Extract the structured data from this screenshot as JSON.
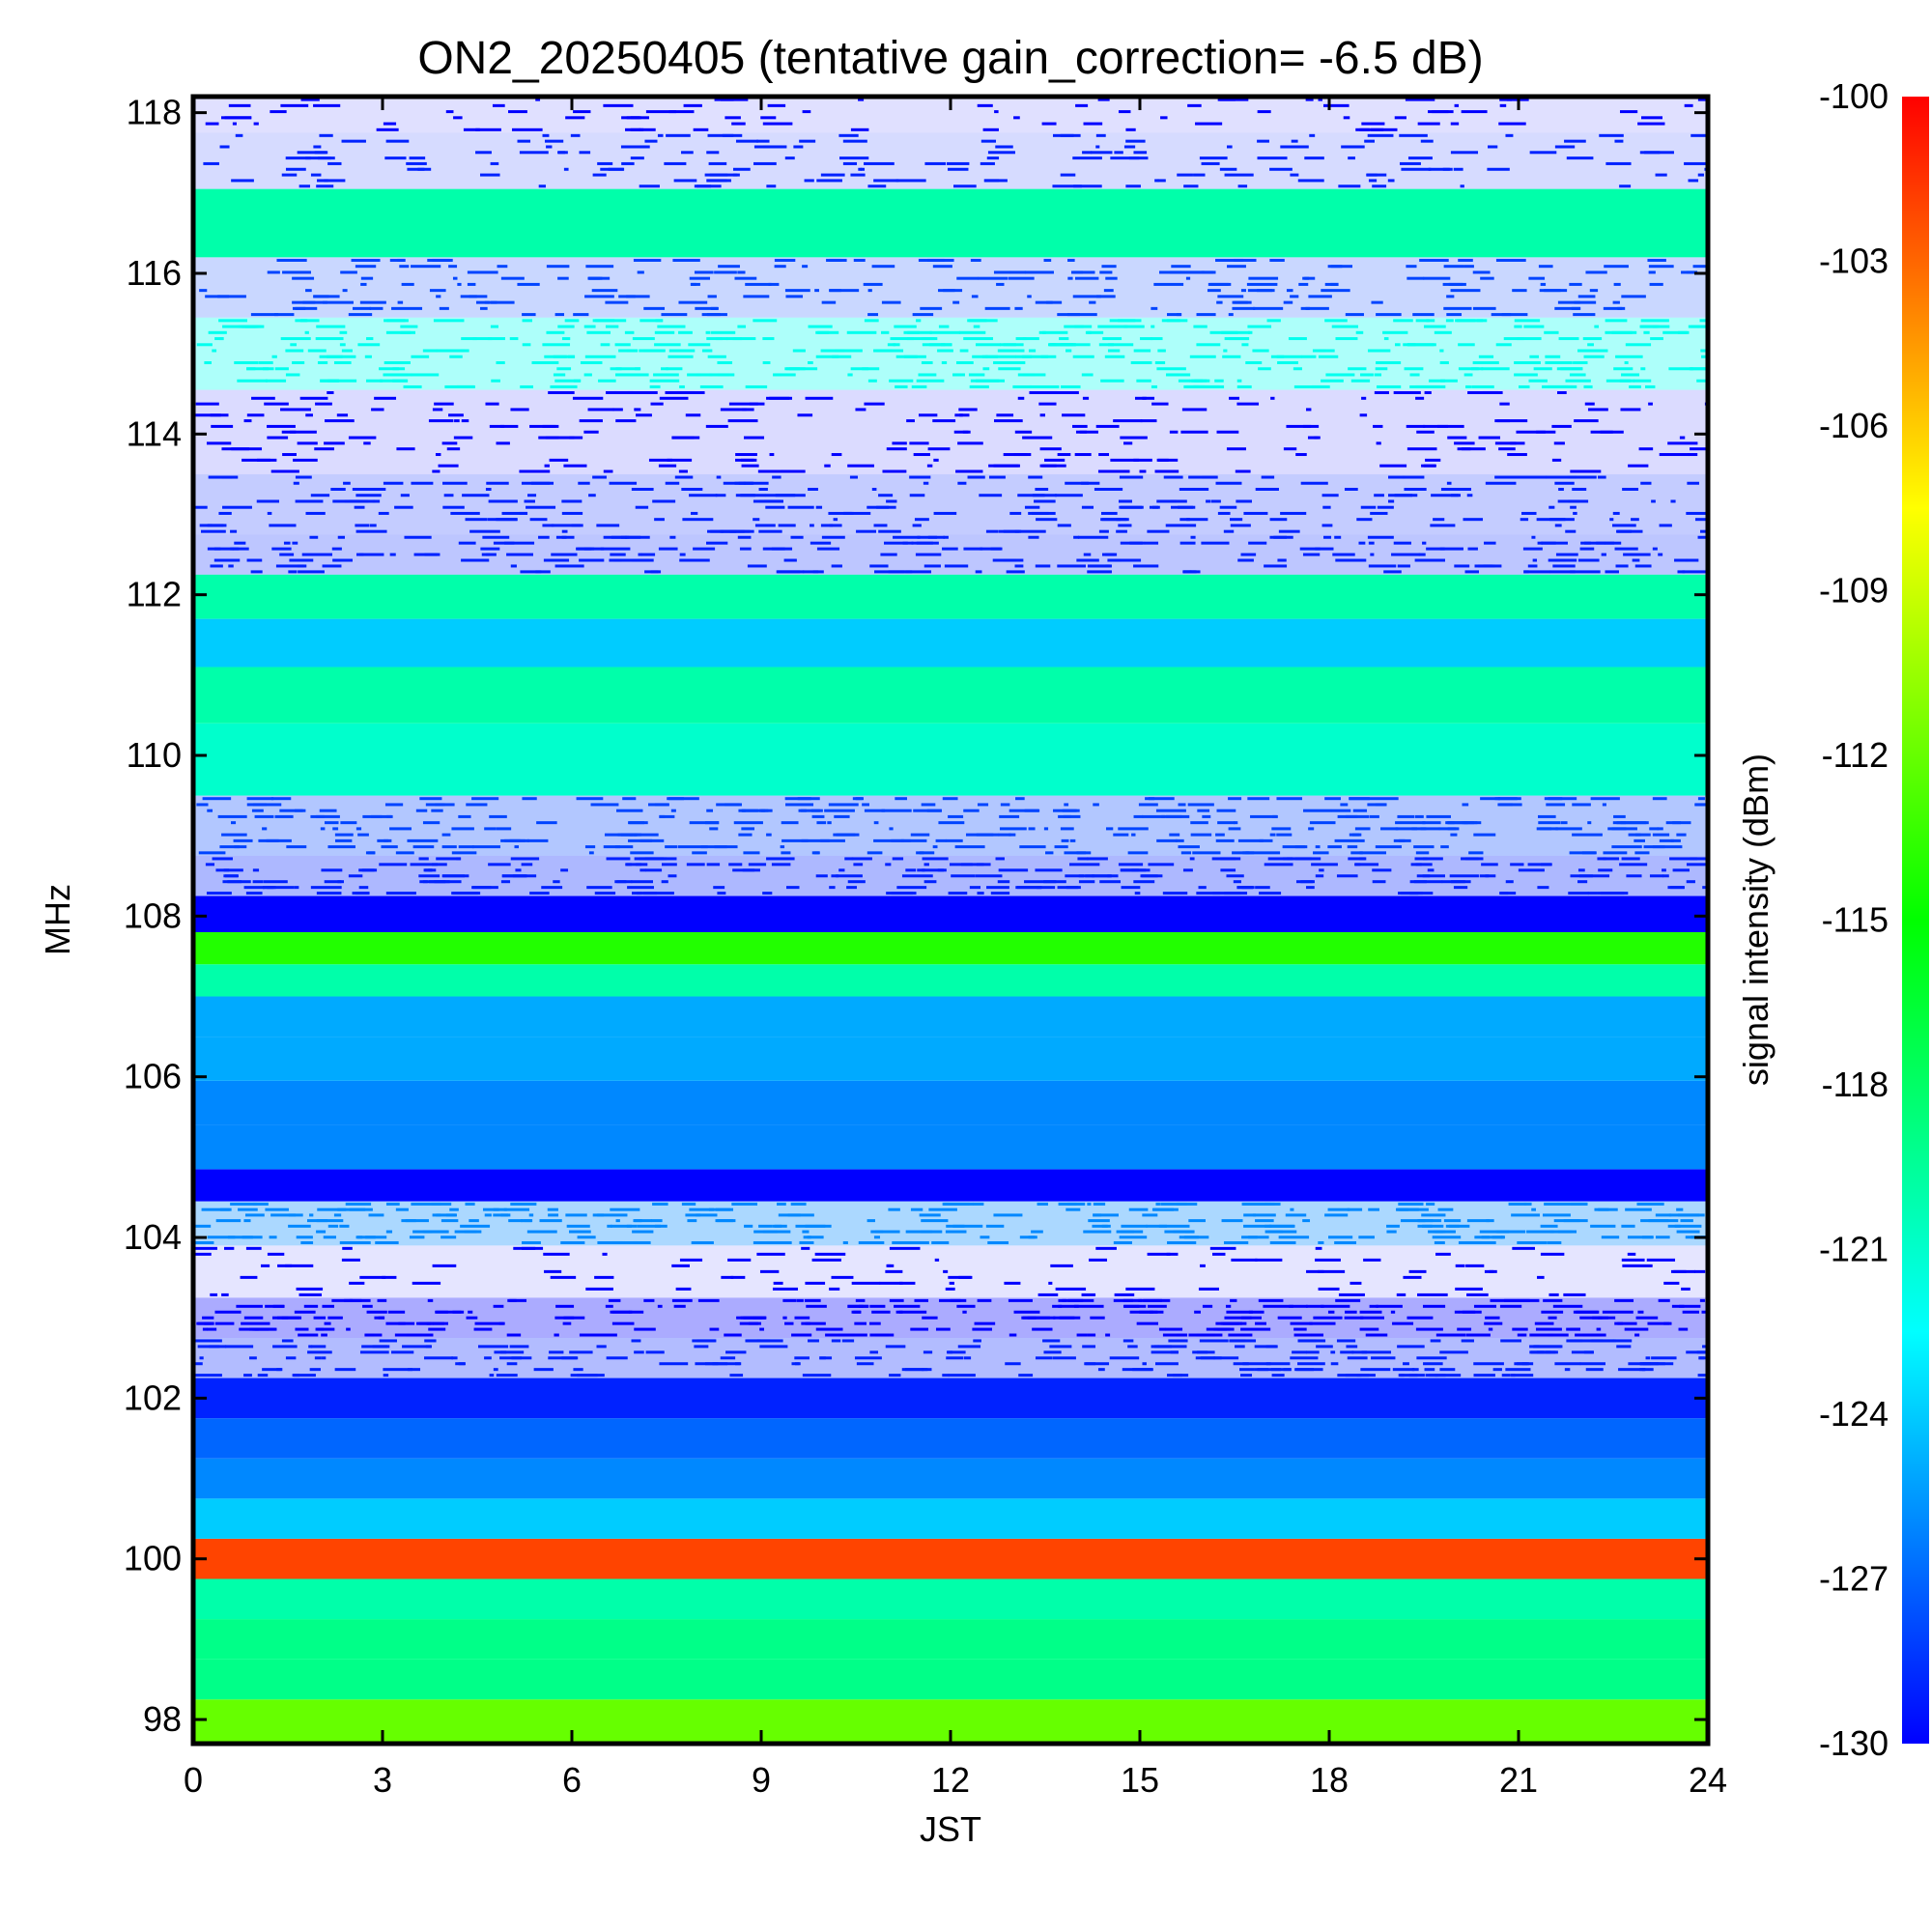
{
  "chart_data": {
    "type": "heatmap",
    "title": "ON2_20250405 (tentative gain_correction= -6.5 dB)",
    "xlabel": "JST",
    "ylabel": "MHz",
    "xlim": [
      0,
      24
    ],
    "ylim": [
      97.7,
      118.2
    ],
    "x_ticks": [
      "0",
      "3",
      "6",
      "9",
      "12",
      "15",
      "18",
      "21",
      "24"
    ],
    "y_ticks": [
      "98",
      "100",
      "102",
      "104",
      "106",
      "108",
      "110",
      "112",
      "114",
      "116",
      "118"
    ],
    "colorbar": {
      "label": "signal intensity (dBm)",
      "range": [
        -130,
        -100
      ],
      "ticks": [
        "-100",
        "-103",
        "-106",
        "-109",
        "-112",
        "-115",
        "-118",
        "-121",
        "-124",
        "-127",
        "-130"
      ],
      "colormap": [
        "#0000ff",
        "#00ffff",
        "#00ff00",
        "#ffff00",
        "#ff0000"
      ]
    },
    "bands": [
      {
        "mhz": 98.0,
        "dbm": -112,
        "coverage": 1.0
      },
      {
        "mhz": 98.5,
        "dbm": -119,
        "coverage": 1.0
      },
      {
        "mhz": 99.0,
        "dbm": -119,
        "coverage": 1.0
      },
      {
        "mhz": 99.5,
        "dbm": -120,
        "coverage": 1.0
      },
      {
        "mhz": 100.0,
        "dbm": -102,
        "coverage": 1.0
      },
      {
        "mhz": 100.5,
        "dbm": -124,
        "coverage": 1.0
      },
      {
        "mhz": 101.0,
        "dbm": -126,
        "coverage": 1.0
      },
      {
        "mhz": 101.5,
        "dbm": -127,
        "coverage": 1.0
      },
      {
        "mhz": 102.0,
        "dbm": -129,
        "coverage": 1.0
      },
      {
        "mhz": 102.5,
        "dbm": -129,
        "coverage": 0.85
      },
      {
        "mhz": 103.0,
        "dbm": -130,
        "coverage": 0.95
      },
      {
        "mhz": 103.5,
        "dbm": -130,
        "coverage": 0.3
      },
      {
        "mhz": 104.3,
        "dbm": -126,
        "coverage": 0.95
      },
      {
        "mhz": 104.6,
        "dbm": -130,
        "coverage": 1.0
      },
      {
        "mhz": 105.1,
        "dbm": -126,
        "coverage": 1.0
      },
      {
        "mhz": 105.7,
        "dbm": -126,
        "coverage": 1.0
      },
      {
        "mhz": 106.2,
        "dbm": -125,
        "coverage": 1.0
      },
      {
        "mhz": 106.8,
        "dbm": -125,
        "coverage": 1.0
      },
      {
        "mhz": 107.2,
        "dbm": -120,
        "coverage": 1.0
      },
      {
        "mhz": 107.6,
        "dbm": -114,
        "coverage": 1.0
      },
      {
        "mhz": 108.0,
        "dbm": -130,
        "coverage": 1.0
      },
      {
        "mhz": 108.5,
        "dbm": -129,
        "coverage": 0.9
      },
      {
        "mhz": 109.0,
        "dbm": -128,
        "coverage": 0.85
      },
      {
        "mhz": 110.0,
        "dbm": -121,
        "coverage": 1.0
      },
      {
        "mhz": 110.8,
        "dbm": -120,
        "coverage": 1.0
      },
      {
        "mhz": 111.4,
        "dbm": -124,
        "coverage": 1.0
      },
      {
        "mhz": 112.0,
        "dbm": -120,
        "coverage": 1.0
      },
      {
        "mhz": 112.5,
        "dbm": -129,
        "coverage": 0.75
      },
      {
        "mhz": 113.0,
        "dbm": -129,
        "coverage": 0.65
      },
      {
        "mhz": 114.0,
        "dbm": -130,
        "coverage": 0.4
      },
      {
        "mhz": 115.1,
        "dbm": -122,
        "coverage": 0.9
      },
      {
        "mhz": 115.8,
        "dbm": -128,
        "coverage": 0.6
      },
      {
        "mhz": 116.6,
        "dbm": -120,
        "coverage": 1.0
      },
      {
        "mhz": 117.5,
        "dbm": -129,
        "coverage": 0.45
      },
      {
        "mhz": 118.0,
        "dbm": -130,
        "coverage": 0.35
      }
    ]
  }
}
